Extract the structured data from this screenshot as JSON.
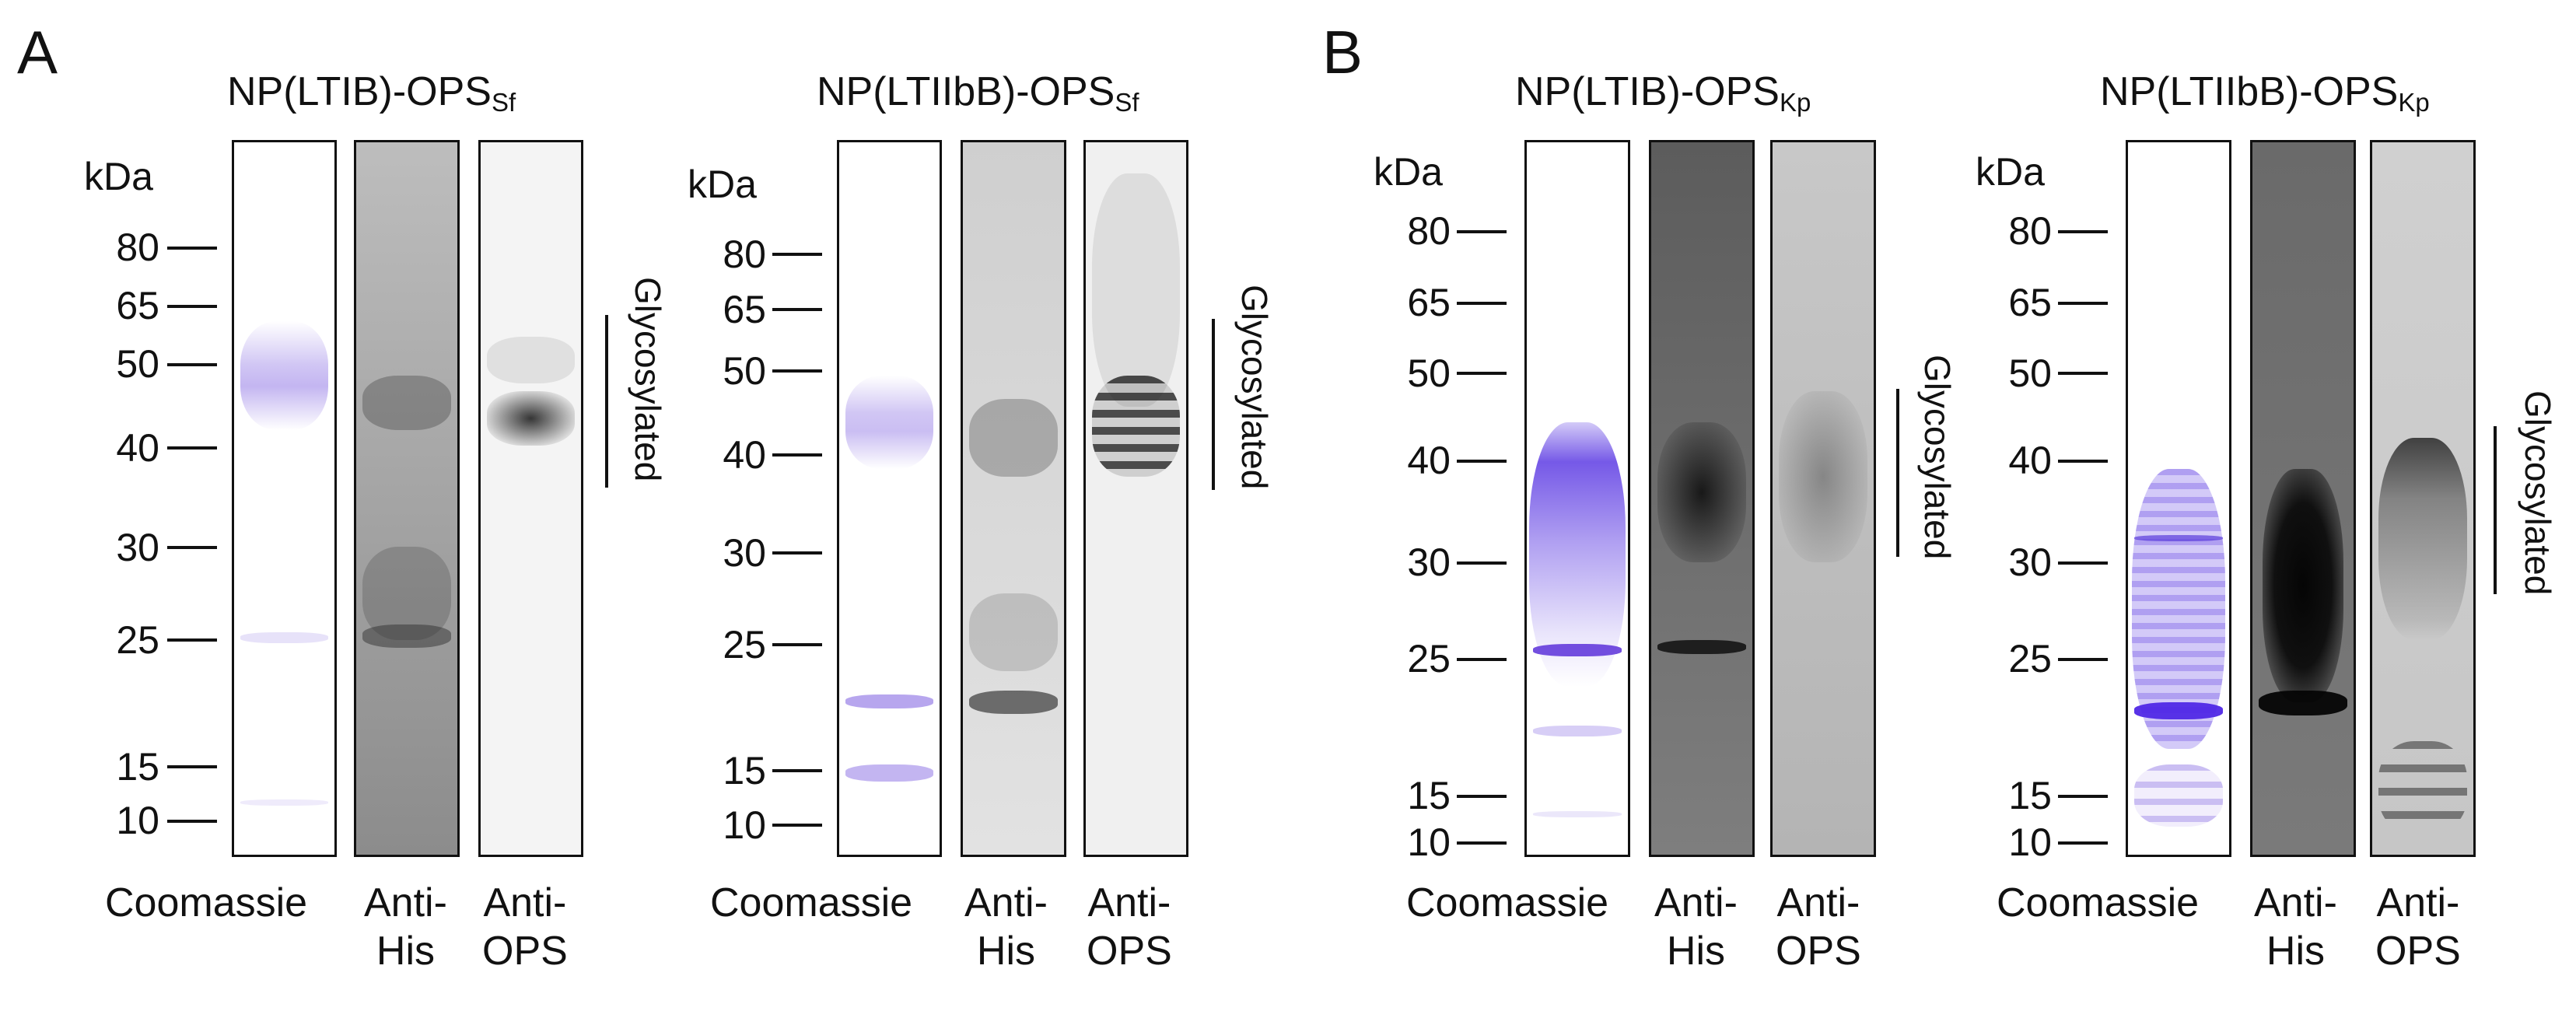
{
  "panels": [
    {
      "letter": "A",
      "gels": [
        {
          "title_main": "NP(LTIB)-OPS",
          "title_sub": "Sf",
          "unit": "kDa",
          "markers": [
            "80",
            "65",
            "50",
            "40",
            "30",
            "25",
            "15",
            "10"
          ],
          "lanes": [
            {
              "label_line1": "Coomassie",
              "label_line2": ""
            },
            {
              "label_line1": "Anti-",
              "label_line2": "His"
            },
            {
              "label_line1": "Anti-",
              "label_line2": "OPS"
            }
          ],
          "annotation": "Glycosylated"
        },
        {
          "title_main": "NP(LTIIbB)-OPS",
          "title_sub": "Sf",
          "unit": "kDa",
          "markers": [
            "80",
            "65",
            "50",
            "40",
            "30",
            "25",
            "15",
            "10"
          ],
          "lanes": [
            {
              "label_line1": "Coomassie",
              "label_line2": ""
            },
            {
              "label_line1": "Anti-",
              "label_line2": "His"
            },
            {
              "label_line1": "Anti-",
              "label_line2": "OPS"
            }
          ],
          "annotation": "Glycosylated"
        }
      ]
    },
    {
      "letter": "B",
      "gels": [
        {
          "title_main": "NP(LTIB)-OPS",
          "title_sub": "Kp",
          "unit": "kDa",
          "markers": [
            "80",
            "65",
            "50",
            "40",
            "30",
            "25",
            "15",
            "10"
          ],
          "lanes": [
            {
              "label_line1": "Coomassie",
              "label_line2": ""
            },
            {
              "label_line1": "Anti-",
              "label_line2": "His"
            },
            {
              "label_line1": "Anti-",
              "label_line2": "OPS"
            }
          ],
          "annotation": "Glycosylated"
        },
        {
          "title_main": "NP(LTIIbB)-OPS",
          "title_sub": "Kp",
          "unit": "kDa",
          "markers": [
            "80",
            "65",
            "50",
            "40",
            "30",
            "25",
            "15",
            "10"
          ],
          "lanes": [
            {
              "label_line1": "Coomassie",
              "label_line2": ""
            },
            {
              "label_line1": "Anti-",
              "label_line2": "His"
            },
            {
              "label_line1": "Anti-",
              "label_line2": "OPS"
            }
          ],
          "annotation": "Glycosylated"
        }
      ]
    }
  ],
  "colors": {
    "coomassie": "#7b5ce0",
    "blot_dark": "#1a1a1a",
    "blot_bg_light": "#e6e6e6",
    "blot_bg_dark": "#5a5a5a"
  }
}
